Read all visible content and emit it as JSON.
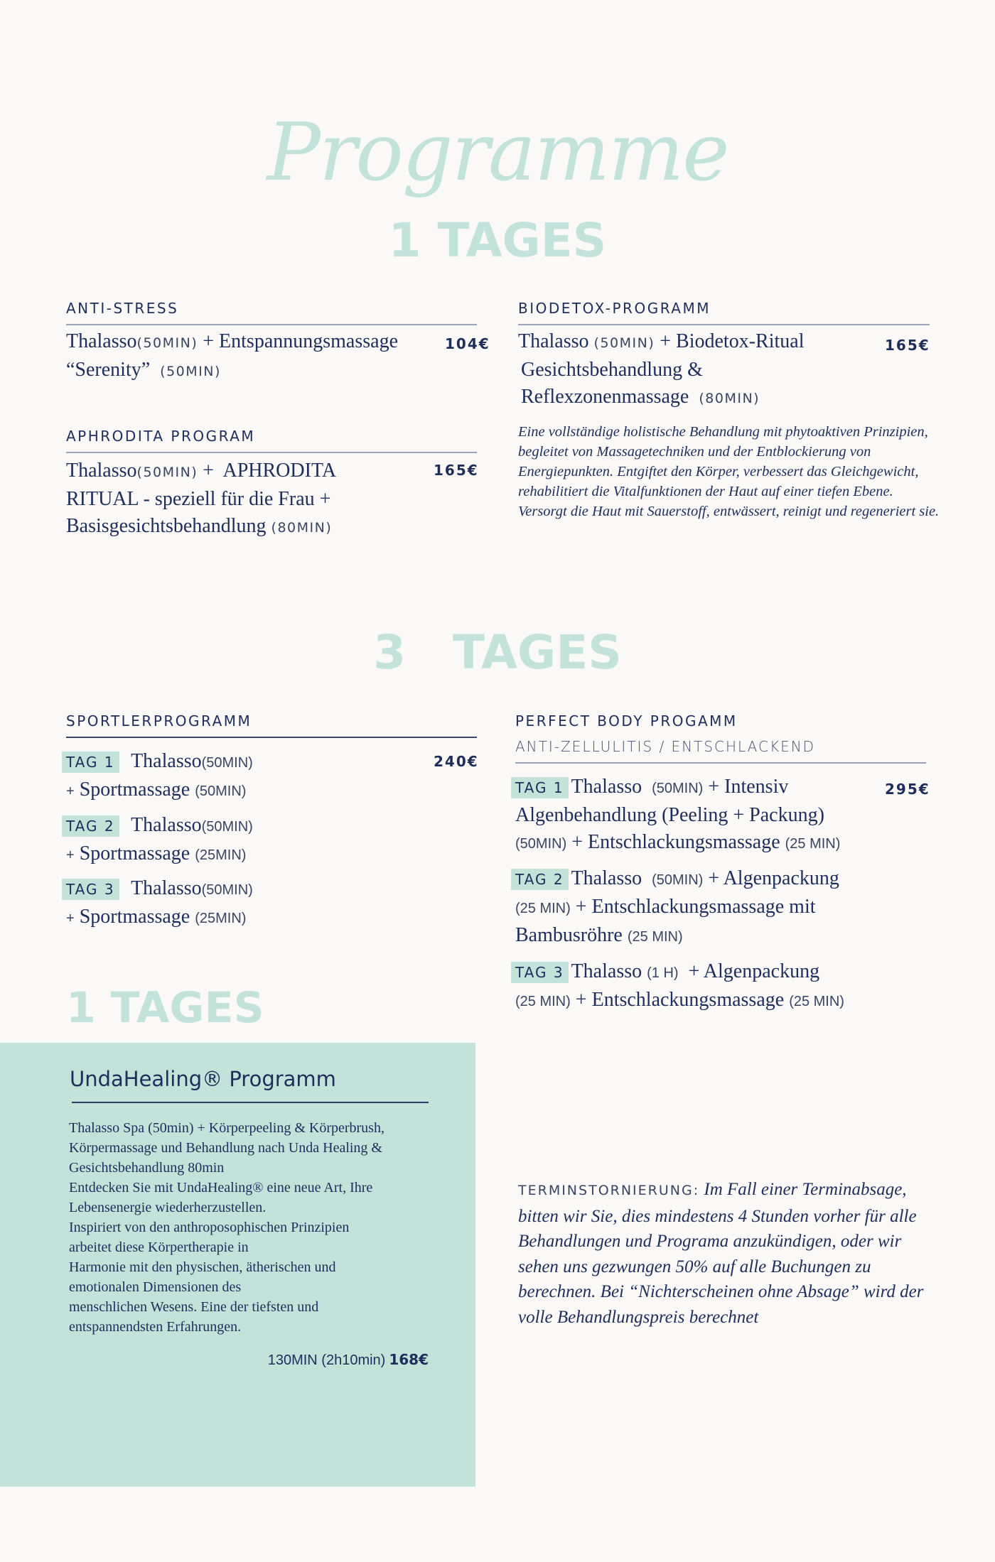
{
  "title": "Programme",
  "section1": {
    "heading": "1 TAGES",
    "anti_stress": {
      "heading": "ANTI-STRESS",
      "l1a": "Thalasso",
      "l1b": "(50MIN)",
      "l1c": "+ Entspannungsmassage",
      "l2a": "“Serenity”",
      "l2b": "(50MIN)",
      "price": "104€"
    },
    "aphrodita": {
      "heading": "APHRODITA PROGRAM",
      "l1a": "Thalasso",
      "l1b": "(50MIN)",
      "l1c": " +  APHRODITA",
      "l2": "RITUAL  - speziell für die Frau +",
      "l3a": "Basisgesichtsbehandlung",
      "l3b": "(80MIN)",
      "price": "165€"
    },
    "biodetox": {
      "heading": "BIODETOX-PROGRAMM",
      "l1a": "Thalasso",
      "l1b": "(50MIN)",
      "l1c": "+ Biodetox-Ritual",
      "l2": "Gesichtsbehandlung &",
      "l3a": "Reflexzonenmassage",
      "l3b": "(80MIN)",
      "price": "165€",
      "description": "Eine vollständige holistische Behandlung mit phytoaktiven Prinzipien, begleitet von Massagetechniken und der Entblockierung von Energiepunkten. Entgiftet den Körper, verbessert das Gleichgewicht, rehabilitiert die Vitalfunktionen der Haut auf einer tiefen Ebene. Versorgt die Haut mit Sauerstoff, entwässert, reinigt und regeneriert sie."
    }
  },
  "section3": {
    "heading": "3  TAGES",
    "sportler": {
      "heading": "SPORTLERPROGRAMM",
      "price": "240€",
      "days": [
        {
          "tag": "TAG 1",
          "a": "Thalasso",
          "b": "(50MIN)",
          "c": "Sportmassage",
          "d": "(50MIN)"
        },
        {
          "tag": "TAG 2",
          "a": "Thalasso",
          "b": "(50MIN)",
          "c": "Sportmassage",
          "d": "(25MIN)"
        },
        {
          "tag": "TAG 3",
          "a": "Thalasso",
          "b": "(50MIN)",
          "c": "Sportmassage",
          "d": "(25MIN)"
        }
      ]
    },
    "perfect_body": {
      "heading": "PERFECT BODY PROGAMM",
      "subheading": "ANTI-ZELLULITIS / ENTSCHLACKEND",
      "price": "295€",
      "d1": {
        "tag": "TAG 1",
        "a": "Thalasso",
        "b": "(50MIN)",
        "c": "+ Intensiv",
        "l2": "Algenbehandlung (Peeling + Packung)",
        "l3a": "(50MIN)",
        "l3b": "+ Entschlackungsmassage",
        "l3c": "(25 MIN)"
      },
      "d2": {
        "tag": "TAG 2",
        "a": "Thalasso",
        "b": "(50MIN)",
        "c": "+ Algenpackung",
        "l2a": "(25 MIN)",
        "l2b": "+ Entschlackungsmassage mit",
        "l3a": "Bambusröhre",
        "l3b": "(25 MIN)"
      },
      "d3": {
        "tag": "TAG 3",
        "a": "Thalasso",
        "b": "(1 H)",
        "c": " + Algenpackung",
        "l2a": "(25 MIN)",
        "l2b": "+ Entschlackungsmassage",
        "l2c": "(25 MIN)"
      }
    }
  },
  "section_unda": {
    "heading": "1 TAGES",
    "title": "UndaHealing® Programm",
    "lines": [
      "Thalasso Spa (50min) + Körperpeeling & Körperbrush,",
      "Körpermassage und Behandlung nach Unda Healing &",
      "Gesichtsbehandlung 80min",
      "Entdecken Sie mit UndaHealing® eine neue Art, Ihre",
      "Lebensenergie wiederherzustellen.",
      "Inspiriert von den anthroposophischen Prinzipien",
      "arbeitet diese Körpertherapie in",
      "Harmonie mit den physischen, ätherischen und",
      "emotionalen Dimensionen des",
      "menschlichen Wesens. Eine der tiefsten und",
      "entspannendsten Erfahrungen."
    ],
    "duration": "130MIN (2h10min)",
    "price": "168€"
  },
  "cancellation": {
    "label": "TERMINSTORNIERUNG:",
    "text": "Im Fall einer Terminabsage, bitten wir Sie, dies mindestens 4 Stunden vorher für alle Behandlungen und Programa anzukündigen, oder wir sehen uns gezwungen 50% auf alle Buchungen zu berechnen. Bei “Nichterscheinen ohne Absage” wird der volle Behandlungspreis berechnet"
  },
  "colors": {
    "accent": "#c3e3da",
    "text": "#1f2d5a",
    "background": "#faf9f7"
  }
}
